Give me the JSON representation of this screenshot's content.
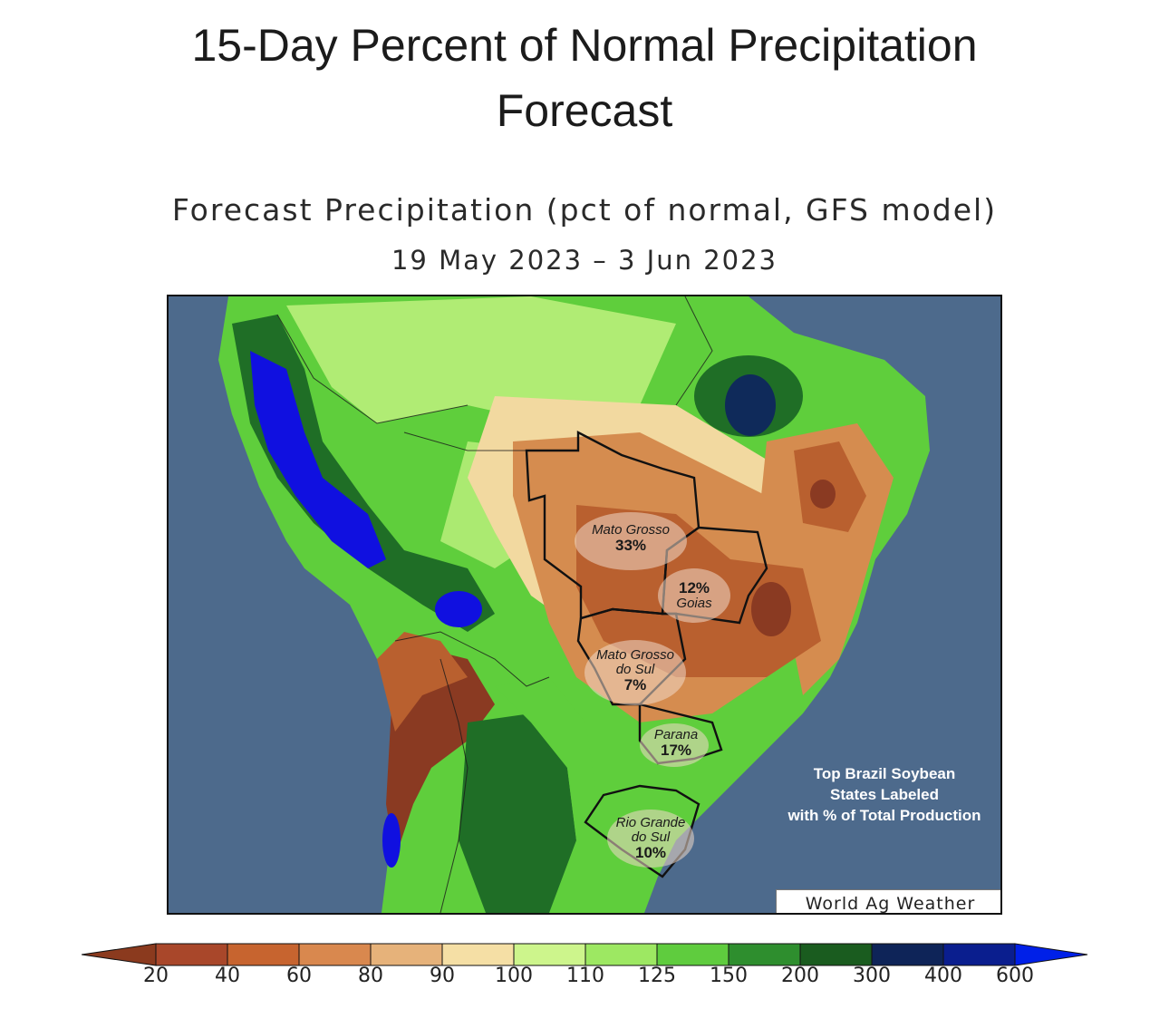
{
  "page": {
    "title_line1": "15-Day Percent of Normal Precipitation",
    "title_line2": "Forecast"
  },
  "map": {
    "title": "Forecast Precipitation (pct of normal, GFS model)",
    "date_range": "19 May 2023 – 3 Jun 2023",
    "model": "GFS",
    "credit": "World Ag Weather",
    "note": {
      "line1": "Top Brazil Soybean",
      "line2": "States Labeled",
      "line3": "with % of Total Production"
    },
    "states": [
      {
        "name": "Mato Grosso",
        "share": "33%"
      },
      {
        "name": "Goias",
        "share": "12%"
      },
      {
        "name": "Mato Grosso",
        "name2": "do Sul",
        "share": "7%"
      },
      {
        "name": "Parana",
        "share": "17%"
      },
      {
        "name": "Rio Grande",
        "name2": "do Sul",
        "share": "10%"
      }
    ],
    "colors": {
      "ocean": "#4d6a8c",
      "very_dry": "#8a3a22",
      "dry": "#b9602f",
      "below": "#d58c4f",
      "near_normal": "#f2d9a0",
      "wet_light": "#b9ef7a",
      "wet": "#5fce3c",
      "very_wet": "#1f6e26",
      "extreme": "#1010e0"
    }
  },
  "colorbar": {
    "labels": [
      "20",
      "40",
      "60",
      "80",
      "90",
      "100",
      "110",
      "125",
      "150",
      "200",
      "300",
      "400",
      "600"
    ],
    "colors": [
      "#8b3a1e",
      "#a9472a",
      "#c7642f",
      "#d9884e",
      "#e6b27a",
      "#f5dfa5",
      "#cdf58c",
      "#9de862",
      "#5fcc3e",
      "#2e8e2e",
      "#1a5c1f",
      "#0e2458",
      "#0a1e8e",
      "#0020e8"
    ]
  }
}
